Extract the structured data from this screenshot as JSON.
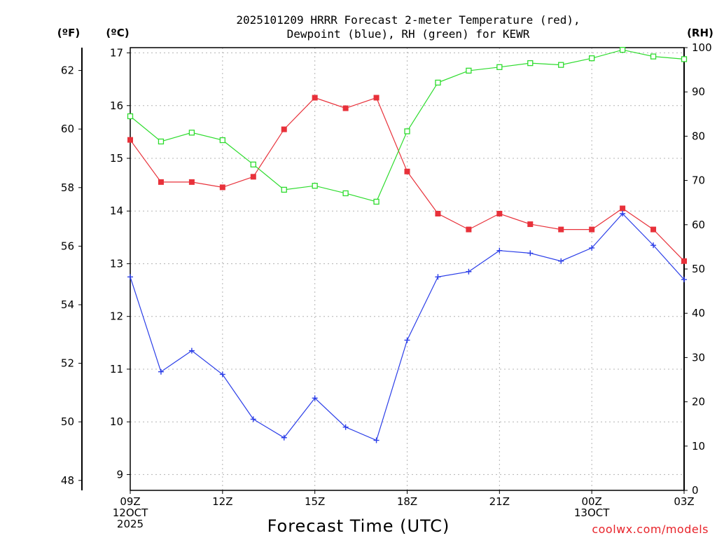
{
  "chart_data": {
    "type": "line",
    "title_line1": "2025101209 HRRR Forecast 2-meter Temperature (red),",
    "title_line2": "Dewpoint (blue), RH (green) for KEWR",
    "xlabel": "Forecast Time (UTC)",
    "credit": "coolwx.com/models",
    "unit_f": "(ºF)",
    "unit_c": "(ºC)",
    "unit_rh": "(RH)",
    "x_hours": [
      0,
      1,
      2,
      3,
      4,
      5,
      6,
      7,
      8,
      9,
      10,
      11,
      12,
      13,
      14,
      15,
      16,
      17,
      18
    ],
    "x_ticks": [
      {
        "hour": 0,
        "lines": [
          "09Z",
          "12OCT",
          "2025"
        ]
      },
      {
        "hour": 3,
        "lines": [
          "12Z"
        ]
      },
      {
        "hour": 6,
        "lines": [
          "15Z"
        ]
      },
      {
        "hour": 9,
        "lines": [
          "18Z"
        ]
      },
      {
        "hour": 12,
        "lines": [
          "21Z"
        ]
      },
      {
        "hour": 15,
        "lines": [
          "00Z",
          "13OCT"
        ]
      },
      {
        "hour": 18,
        "lines": [
          "03Z"
        ]
      }
    ],
    "ylim_c": [
      8.7,
      17.1
    ],
    "ylim_rh": [
      0,
      100
    ],
    "yticks_c": [
      "9",
      "10",
      "11",
      "12",
      "13",
      "14",
      "15",
      "16",
      "17"
    ],
    "yticks_f": [
      "48",
      "50",
      "52",
      "54",
      "56",
      "58",
      "60",
      "62"
    ],
    "yticks_rh": [
      "0",
      "10",
      "20",
      "30",
      "40",
      "50",
      "60",
      "70",
      "80",
      "90",
      "100"
    ],
    "grid": true,
    "series": [
      {
        "name": "Temperature",
        "color": "#e8313a",
        "marker": "filled-square",
        "axis": "c",
        "values": [
          15.35,
          14.55,
          14.55,
          14.45,
          14.65,
          15.55,
          16.15,
          15.95,
          16.15,
          14.75,
          13.95,
          13.65,
          13.95,
          13.75,
          13.65,
          13.65,
          14.05,
          13.65,
          13.05
        ]
      },
      {
        "name": "Dewpoint",
        "color": "#2b3ee8",
        "marker": "plus",
        "axis": "c",
        "values": [
          12.75,
          10.95,
          11.35,
          10.9,
          10.05,
          9.7,
          10.45,
          9.9,
          9.65,
          11.55,
          12.75,
          12.85,
          13.25,
          13.2,
          13.05,
          13.3,
          13.95,
          13.35,
          12.7
        ]
      },
      {
        "name": "RH",
        "color": "#2edc2e",
        "marker": "open-square",
        "axis": "rh",
        "values": [
          84.5,
          78.8,
          80.8,
          79.1,
          73.6,
          67.9,
          68.8,
          67.1,
          65.2,
          81.1,
          92.1,
          94.8,
          95.6,
          96.5,
          96.1,
          97.6,
          99.5,
          98.0,
          97.4
        ]
      }
    ]
  }
}
